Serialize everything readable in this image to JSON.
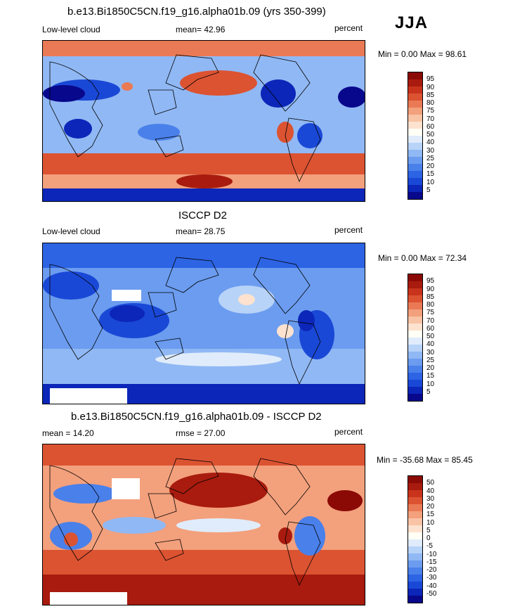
{
  "season": "JJA",
  "colors": {
    "abs_scale": [
      "#08088c",
      "#0b26b8",
      "#1a48d6",
      "#2d64e4",
      "#4a80ea",
      "#6b9cef",
      "#90b8f4",
      "#b7d3f8",
      "#e0ecfb",
      "#fffff5",
      "#fde2cf",
      "#f9c3a5",
      "#f3a07c",
      "#ea7a55",
      "#dc5332",
      "#c9331c",
      "#a81b0e",
      "#8b0a05"
    ],
    "diff_scale": [
      "#08088c",
      "#0b26b8",
      "#1a48d6",
      "#2d64e4",
      "#4a80ea",
      "#6b9cef",
      "#90b8f4",
      "#b7d3f8",
      "#e0ecfb",
      "#fffff5",
      "#fde2cf",
      "#f9c3a5",
      "#f3a07c",
      "#ea7a55",
      "#dc5332",
      "#c9331c",
      "#a81b0e",
      "#8b0a05"
    ]
  },
  "panels": [
    {
      "title": "b.e13.Bi1850C5CN.f19_g16.alpha01b.09 (yrs 350-399)",
      "left_label": "Low-level cloud",
      "center_label": "mean=  42.96",
      "right_label": "percent",
      "minmax": "Min =   0.00 Max =  98.61",
      "ticks": [
        "95",
        "90",
        "85",
        "80",
        "75",
        "70",
        "60",
        "50",
        "40",
        "30",
        "25",
        "20",
        "15",
        "10",
        "5"
      ]
    },
    {
      "title": "ISCCP D2",
      "left_label": "Low-level cloud",
      "center_label": "mean=  28.75",
      "right_label": "percent",
      "minmax": "Min =   0.00 Max =  72.34",
      "ticks": [
        "95",
        "90",
        "85",
        "80",
        "75",
        "70",
        "60",
        "50",
        "40",
        "30",
        "25",
        "20",
        "15",
        "10",
        "5"
      ]
    },
    {
      "title": "b.e13.Bi1850C5CN.f19_g16.alpha01b.09 - ISCCP D2",
      "left_label": "mean =  14.20",
      "center_label": "rmse =  27.00",
      "right_label": "percent",
      "minmax": "Min = -35.68 Max =  85.45",
      "ticks": [
        "50",
        "40",
        "30",
        "20",
        "15",
        "10",
        "5",
        "0",
        "-5",
        "-10",
        "-15",
        "-20",
        "-30",
        "-40",
        "-50"
      ]
    }
  ]
}
